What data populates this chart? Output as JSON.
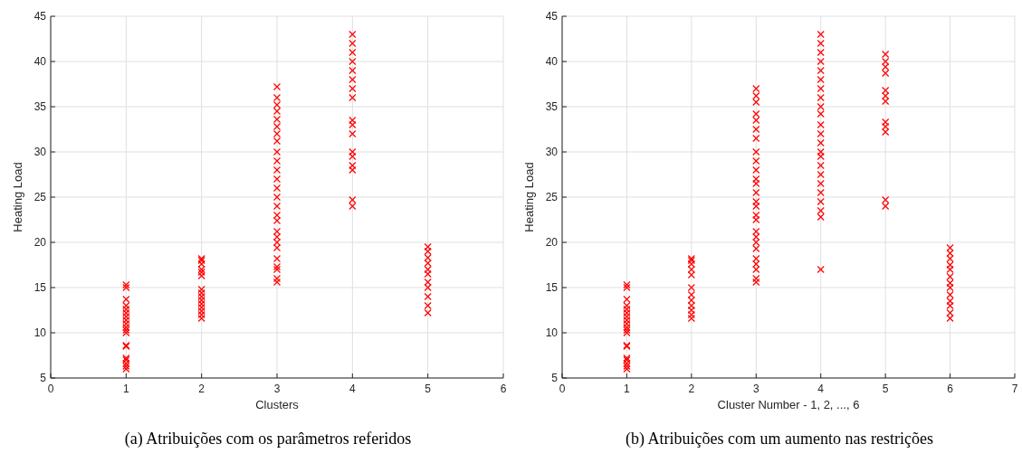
{
  "chart_data": [
    {
      "type": "scatter",
      "xlabel": "Clusters",
      "ylabel": "Heating Load",
      "xlim": [
        0,
        6
      ],
      "xticks": [
        0,
        1,
        2,
        3,
        4,
        5,
        6
      ],
      "ylim": [
        5,
        45
      ],
      "yticks": [
        5,
        10,
        15,
        20,
        25,
        30,
        35,
        40,
        45
      ],
      "grid": true,
      "marker": "cross",
      "annotations": [
        "(a) Atribuições com os parâmetros referidos"
      ],
      "series": [
        {
          "color": "#ff0000",
          "x": [
            1,
            1,
            1,
            1,
            1,
            1,
            1,
            1,
            1,
            1,
            1,
            1,
            1,
            1,
            1,
            1,
            1,
            1,
            1,
            2,
            2,
            2,
            2,
            2,
            2,
            2,
            2,
            2,
            2,
            2,
            2,
            2,
            2,
            2,
            3,
            3,
            3,
            3,
            3,
            3,
            3,
            3,
            3,
            3,
            3,
            3,
            3,
            3,
            3,
            3,
            3,
            3,
            3,
            3,
            3,
            3,
            3,
            3,
            3,
            3,
            4,
            4,
            4,
            4,
            4,
            4,
            4,
            4,
            4,
            4,
            4,
            4,
            4,
            4,
            4,
            4,
            4,
            5,
            5,
            5,
            5,
            5,
            5,
            5,
            5,
            5,
            5,
            5
          ],
          "values": [
            6,
            6.3,
            6.6,
            7,
            7.2,
            8.5,
            8.6,
            10,
            10.3,
            10.6,
            11,
            11.4,
            11.8,
            12.2,
            12.6,
            13,
            13.7,
            15,
            15.3,
            11.6,
            12,
            12.4,
            12.8,
            13.2,
            13.6,
            14,
            14.4,
            14.8,
            16.3,
            16.7,
            17,
            17.6,
            18,
            18.2,
            15.6,
            16,
            17,
            17.3,
            18.2,
            19.4,
            20,
            20.6,
            21.2,
            22.4,
            23,
            24,
            25,
            26,
            27,
            28,
            29,
            30,
            31.2,
            32,
            32.8,
            33.6,
            34.5,
            35.2,
            36,
            37.2,
            24,
            24.7,
            28,
            28.5,
            29.5,
            30,
            32,
            33,
            33.5,
            36,
            37,
            38,
            39,
            40,
            41,
            42,
            43,
            12.2,
            13,
            14,
            15,
            15.6,
            16.5,
            17,
            17.7,
            18.3,
            19,
            19.5
          ]
        }
      ]
    },
    {
      "type": "scatter",
      "xlabel": "Cluster Number - 1, 2, ..., 6",
      "ylabel": "Heating Load",
      "xlim": [
        0,
        7
      ],
      "xticks": [
        0,
        1,
        2,
        3,
        4,
        5,
        6,
        7
      ],
      "ylim": [
        5,
        45
      ],
      "yticks": [
        5,
        10,
        15,
        20,
        25,
        30,
        35,
        40,
        45
      ],
      "grid": true,
      "marker": "cross",
      "annotations": [
        "(b) Atribuições com um aumento nas restrições"
      ],
      "series": [
        {
          "color": "#ff0000",
          "x": [
            1,
            1,
            1,
            1,
            1,
            1,
            1,
            1,
            1,
            1,
            1,
            1,
            1,
            1,
            1,
            1,
            1,
            1,
            1,
            2,
            2,
            2,
            2,
            2,
            2,
            2,
            2,
            2,
            2,
            2,
            2,
            3,
            3,
            3,
            3,
            3,
            3,
            3,
            3,
            3,
            3,
            3,
            3,
            3,
            3,
            3,
            3,
            3,
            3,
            3,
            3,
            3,
            3,
            3,
            3,
            3,
            3,
            4,
            4,
            4,
            4,
            4,
            4,
            4,
            4,
            4,
            4,
            4,
            4,
            4,
            4,
            4,
            4,
            4,
            4,
            4,
            4,
            4,
            4,
            4,
            5,
            5,
            5,
            5,
            5,
            5,
            5,
            5,
            5,
            5,
            5,
            5,
            6,
            6,
            6,
            6,
            6,
            6,
            6,
            6,
            6,
            6,
            6,
            6,
            6
          ],
          "values": [
            6,
            6.3,
            6.6,
            7,
            7.2,
            8.5,
            8.6,
            10,
            10.3,
            10.6,
            11,
            11.4,
            11.8,
            12.2,
            12.6,
            13,
            13.7,
            15,
            15.3,
            11.6,
            12,
            12.5,
            13,
            13.6,
            14.2,
            15,
            16.4,
            17,
            17.6,
            18,
            18.2,
            15.6,
            16,
            17,
            17.6,
            18.2,
            19.3,
            20,
            20.6,
            21.2,
            22.5,
            23,
            24,
            24.5,
            25.5,
            26.5,
            27,
            28,
            29,
            30,
            31.5,
            32.5,
            33.5,
            34.2,
            35.5,
            36.2,
            37,
            17,
            22.8,
            23.5,
            24.5,
            25.5,
            26.5,
            27.5,
            28.5,
            29.5,
            30,
            31,
            32,
            33,
            34.2,
            35,
            36,
            37,
            38,
            39,
            40,
            41,
            42,
            43,
            24,
            24.7,
            32.2,
            32.8,
            33.3,
            35.6,
            36.2,
            36.8,
            38.7,
            39.4,
            40,
            40.8,
            11.6,
            12.2,
            13,
            13.5,
            14.2,
            15,
            15.5,
            16.2,
            17,
            17.5,
            18.2,
            18.8,
            19.4
          ]
        }
      ]
    }
  ]
}
